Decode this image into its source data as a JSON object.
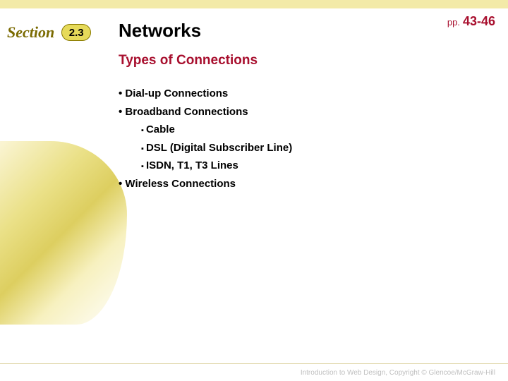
{
  "colors": {
    "accent": "#a80f2e",
    "tag_bg": "#e6da5a",
    "section_text": "#7a6a00",
    "top_bar": "#f3eaa8"
  },
  "header": {
    "section_label": "Section",
    "section_number": "2.3",
    "title": "Networks",
    "pp_prefix": "pp.",
    "pp_range": "43-46"
  },
  "subtitle": "Types of Connections",
  "bullets": {
    "lvl1": [
      "Dial-up Connections",
      "Broadband Connections",
      "Wireless Connections"
    ],
    "broadband_sub": [
      "Cable",
      "DSL (Digital Subscriber Line)",
      "ISDN, T1, T3 Lines"
    ]
  },
  "footer": "Introduction to Web Design, Copyright © Glencoe/McGraw-Hill"
}
